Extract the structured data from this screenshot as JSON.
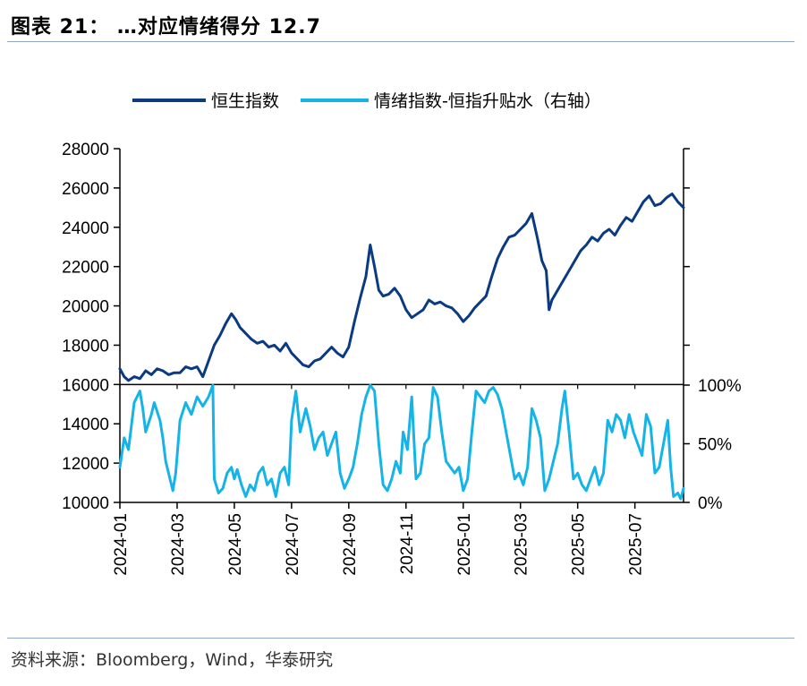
{
  "figure": {
    "title": "图表 21： …对应情绪得分 12.7",
    "source": "资料来源：Bloomberg，Wind，华泰研究"
  },
  "colors": {
    "hsi": "#0a3a82",
    "sentiment": "#15b4e8",
    "axis": "#000000"
  },
  "chart_data": {
    "type": "line",
    "title": "",
    "legend": [
      "恒生指数",
      "情绪指数-恒指升贴水（右轴）"
    ],
    "x_ticks": [
      "2024-01",
      "2024-03",
      "2024-05",
      "2024-07",
      "2024-09",
      "2024-11",
      "2025-01",
      "2025-03",
      "2025-05",
      "2025-07"
    ],
    "x_range": [
      0,
      19.7
    ],
    "y_left": {
      "ticks": [
        "10000",
        "12000",
        "14000",
        "16000",
        "18000",
        "20000",
        "22000",
        "24000",
        "26000",
        "28000"
      ],
      "range": [
        10000,
        28000
      ]
    },
    "y_right": {
      "ticks": [
        "0%",
        "50%",
        "100%"
      ],
      "range": [
        0,
        100
      ]
    },
    "series": [
      {
        "name": "恒生指数",
        "axis": "left",
        "points": [
          [
            0.0,
            16800
          ],
          [
            0.15,
            16400
          ],
          [
            0.3,
            16200
          ],
          [
            0.5,
            16400
          ],
          [
            0.7,
            16300
          ],
          [
            0.9,
            16700
          ],
          [
            1.1,
            16500
          ],
          [
            1.3,
            16800
          ],
          [
            1.5,
            16700
          ],
          [
            1.7,
            16500
          ],
          [
            1.9,
            16600
          ],
          [
            2.1,
            16600
          ],
          [
            2.3,
            16900
          ],
          [
            2.5,
            16800
          ],
          [
            2.7,
            16900
          ],
          [
            2.9,
            16400
          ],
          [
            3.1,
            17200
          ],
          [
            3.3,
            18000
          ],
          [
            3.5,
            18500
          ],
          [
            3.7,
            19100
          ],
          [
            3.9,
            19600
          ],
          [
            4.05,
            19300
          ],
          [
            4.2,
            18900
          ],
          [
            4.4,
            18600
          ],
          [
            4.6,
            18300
          ],
          [
            4.8,
            18100
          ],
          [
            5.0,
            18200
          ],
          [
            5.2,
            17900
          ],
          [
            5.4,
            18000
          ],
          [
            5.6,
            17700
          ],
          [
            5.8,
            18100
          ],
          [
            6.0,
            17600
          ],
          [
            6.2,
            17300
          ],
          [
            6.4,
            17000
          ],
          [
            6.6,
            16900
          ],
          [
            6.8,
            17200
          ],
          [
            7.0,
            17300
          ],
          [
            7.2,
            17600
          ],
          [
            7.4,
            17900
          ],
          [
            7.6,
            17600
          ],
          [
            7.8,
            17400
          ],
          [
            8.0,
            17900
          ],
          [
            8.2,
            19200
          ],
          [
            8.4,
            20400
          ],
          [
            8.6,
            21500
          ],
          [
            8.75,
            23100
          ],
          [
            8.9,
            22000
          ],
          [
            9.05,
            20800
          ],
          [
            9.2,
            20500
          ],
          [
            9.4,
            20600
          ],
          [
            9.6,
            20900
          ],
          [
            9.8,
            20500
          ],
          [
            10.0,
            19800
          ],
          [
            10.2,
            19400
          ],
          [
            10.4,
            19600
          ],
          [
            10.6,
            19800
          ],
          [
            10.8,
            20300
          ],
          [
            11.0,
            20100
          ],
          [
            11.2,
            20200
          ],
          [
            11.4,
            20000
          ],
          [
            11.6,
            19900
          ],
          [
            11.8,
            19600
          ],
          [
            12.0,
            19200
          ],
          [
            12.2,
            19500
          ],
          [
            12.4,
            19900
          ],
          [
            12.6,
            20200
          ],
          [
            12.8,
            20500
          ],
          [
            13.0,
            21500
          ],
          [
            13.2,
            22400
          ],
          [
            13.4,
            23000
          ],
          [
            13.6,
            23500
          ],
          [
            13.8,
            23600
          ],
          [
            14.0,
            23900
          ],
          [
            14.2,
            24200
          ],
          [
            14.4,
            24700
          ],
          [
            14.6,
            23400
          ],
          [
            14.75,
            22300
          ],
          [
            14.9,
            21800
          ],
          [
            15.0,
            19800
          ],
          [
            15.1,
            20300
          ],
          [
            15.3,
            20800
          ],
          [
            15.5,
            21300
          ],
          [
            15.7,
            21800
          ],
          [
            15.9,
            22300
          ],
          [
            16.1,
            22800
          ],
          [
            16.3,
            23100
          ],
          [
            16.5,
            23500
          ],
          [
            16.7,
            23300
          ],
          [
            16.9,
            23700
          ],
          [
            17.1,
            23900
          ],
          [
            17.3,
            23600
          ],
          [
            17.5,
            24100
          ],
          [
            17.7,
            24500
          ],
          [
            17.9,
            24300
          ],
          [
            18.1,
            24800
          ],
          [
            18.3,
            25300
          ],
          [
            18.5,
            25600
          ],
          [
            18.7,
            25100
          ],
          [
            18.9,
            25200
          ],
          [
            19.1,
            25500
          ],
          [
            19.3,
            25700
          ],
          [
            19.5,
            25300
          ],
          [
            19.7,
            25000
          ]
        ]
      },
      {
        "name": "情绪指数-恒指升贴水（右轴）",
        "axis": "right",
        "points": [
          [
            0.0,
            30
          ],
          [
            0.15,
            55
          ],
          [
            0.3,
            45
          ],
          [
            0.5,
            85
          ],
          [
            0.7,
            95
          ],
          [
            0.8,
            80
          ],
          [
            0.9,
            60
          ],
          [
            1.1,
            75
          ],
          [
            1.2,
            85
          ],
          [
            1.4,
            70
          ],
          [
            1.5,
            55
          ],
          [
            1.6,
            35
          ],
          [
            1.75,
            20
          ],
          [
            1.85,
            10
          ],
          [
            1.95,
            25
          ],
          [
            2.1,
            70
          ],
          [
            2.3,
            85
          ],
          [
            2.5,
            75
          ],
          [
            2.7,
            90
          ],
          [
            2.9,
            82
          ],
          [
            3.1,
            90
          ],
          [
            3.25,
            100
          ],
          [
            3.3,
            20
          ],
          [
            3.45,
            8
          ],
          [
            3.6,
            12
          ],
          [
            3.75,
            25
          ],
          [
            3.9,
            30
          ],
          [
            4.0,
            20
          ],
          [
            4.1,
            28
          ],
          [
            4.25,
            15
          ],
          [
            4.4,
            5
          ],
          [
            4.55,
            15
          ],
          [
            4.7,
            10
          ],
          [
            4.85,
            25
          ],
          [
            5.0,
            30
          ],
          [
            5.15,
            15
          ],
          [
            5.3,
            20
          ],
          [
            5.45,
            5
          ],
          [
            5.6,
            25
          ],
          [
            5.75,
            30
          ],
          [
            5.9,
            15
          ],
          [
            6.0,
            70
          ],
          [
            6.15,
            95
          ],
          [
            6.3,
            60
          ],
          [
            6.5,
            80
          ],
          [
            6.65,
            65
          ],
          [
            6.8,
            45
          ],
          [
            6.95,
            55
          ],
          [
            7.1,
            60
          ],
          [
            7.25,
            40
          ],
          [
            7.4,
            50
          ],
          [
            7.55,
            60
          ],
          [
            7.7,
            25
          ],
          [
            7.85,
            12
          ],
          [
            8.0,
            20
          ],
          [
            8.15,
            30
          ],
          [
            8.3,
            50
          ],
          [
            8.45,
            75
          ],
          [
            8.6,
            90
          ],
          [
            8.75,
            100
          ],
          [
            8.9,
            95
          ],
          [
            9.05,
            50
          ],
          [
            9.2,
            15
          ],
          [
            9.35,
            10
          ],
          [
            9.5,
            20
          ],
          [
            9.65,
            35
          ],
          [
            9.8,
            25
          ],
          [
            9.9,
            60
          ],
          [
            10.05,
            45
          ],
          [
            10.2,
            90
          ],
          [
            10.35,
            20
          ],
          [
            10.5,
            25
          ],
          [
            10.65,
            50
          ],
          [
            10.8,
            55
          ],
          [
            10.95,
            98
          ],
          [
            11.1,
            90
          ],
          [
            11.25,
            60
          ],
          [
            11.4,
            35
          ],
          [
            11.55,
            30
          ],
          [
            11.7,
            25
          ],
          [
            11.85,
            30
          ],
          [
            12.0,
            10
          ],
          [
            12.15,
            20
          ],
          [
            12.3,
            60
          ],
          [
            12.45,
            95
          ],
          [
            12.6,
            90
          ],
          [
            12.75,
            85
          ],
          [
            12.9,
            95
          ],
          [
            13.05,
            98
          ],
          [
            13.2,
            92
          ],
          [
            13.35,
            80
          ],
          [
            13.5,
            60
          ],
          [
            13.65,
            40
          ],
          [
            13.8,
            20
          ],
          [
            13.95,
            25
          ],
          [
            14.1,
            15
          ],
          [
            14.25,
            30
          ],
          [
            14.4,
            80
          ],
          [
            14.55,
            70
          ],
          [
            14.7,
            55
          ],
          [
            14.85,
            10
          ],
          [
            15.0,
            20
          ],
          [
            15.15,
            35
          ],
          [
            15.3,
            50
          ],
          [
            15.45,
            80
          ],
          [
            15.55,
            95
          ],
          [
            15.7,
            60
          ],
          [
            15.85,
            20
          ],
          [
            16.0,
            25
          ],
          [
            16.15,
            15
          ],
          [
            16.3,
            10
          ],
          [
            16.45,
            20
          ],
          [
            16.6,
            30
          ],
          [
            16.75,
            15
          ],
          [
            16.9,
            25
          ],
          [
            17.05,
            70
          ],
          [
            17.2,
            60
          ],
          [
            17.35,
            75
          ],
          [
            17.5,
            70
          ],
          [
            17.65,
            55
          ],
          [
            17.8,
            75
          ],
          [
            17.95,
            60
          ],
          [
            18.1,
            50
          ],
          [
            18.25,
            40
          ],
          [
            18.4,
            75
          ],
          [
            18.55,
            65
          ],
          [
            18.7,
            25
          ],
          [
            18.85,
            30
          ],
          [
            19.0,
            50
          ],
          [
            19.15,
            70
          ],
          [
            19.25,
            30
          ],
          [
            19.35,
            5
          ],
          [
            19.5,
            8
          ],
          [
            19.6,
            3
          ],
          [
            19.7,
            12
          ]
        ]
      }
    ]
  }
}
